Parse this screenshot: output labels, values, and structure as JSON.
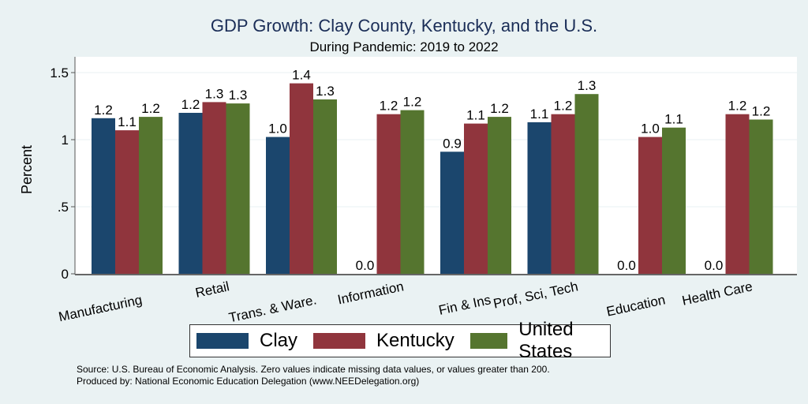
{
  "chart_data": {
    "type": "bar",
    "title": "GDP Growth: Clay County, Kentucky, and the U.S.",
    "subtitle": "During Pandemic: 2019 to 2022",
    "xlabel": "",
    "ylabel": "Percent",
    "ylim": [
      0,
      1.6
    ],
    "yticks": [
      0,
      0.5,
      1,
      1.5
    ],
    "ytick_labels": [
      "0",
      ".5",
      "1",
      "1.5"
    ],
    "grid": true,
    "legend_position": "bottom",
    "categories": [
      "Manufacturing",
      "Retail",
      "Trans. & Ware.",
      "Information",
      "Fin & Ins",
      "Prof, Sci, Tech",
      "Education",
      "Health Care"
    ],
    "series": [
      {
        "name": "Clay",
        "color": "#1b466d",
        "values": [
          1.16,
          1.2,
          1.02,
          0.0,
          0.91,
          1.13,
          0.0,
          0.0
        ],
        "labels": [
          "1.2",
          "1.2",
          "1.0",
          "0.0",
          "0.9",
          "1.1",
          "0.0",
          "0.0"
        ]
      },
      {
        "name": "Kentucky",
        "color": "#90353d",
        "values": [
          1.07,
          1.28,
          1.42,
          1.19,
          1.12,
          1.19,
          1.02,
          1.19
        ],
        "labels": [
          "1.1",
          "1.3",
          "1.4",
          "1.2",
          "1.1",
          "1.2",
          "1.0",
          "1.2"
        ]
      },
      {
        "name": "United States",
        "color": "#55752f",
        "values": [
          1.17,
          1.27,
          1.3,
          1.22,
          1.17,
          1.34,
          1.09,
          1.15
        ],
        "labels": [
          "1.2",
          "1.3",
          "1.3",
          "1.2",
          "1.2",
          "1.3",
          "1.1",
          "1.2"
        ]
      }
    ]
  },
  "footnotes": {
    "source": "Source: U.S. Bureau of Economic Analysis. Zero values indicate missing data values, or values greater than 200.",
    "produced": "Produced by: National Economic Education Delegation (www.NEEDelegation.org)"
  }
}
